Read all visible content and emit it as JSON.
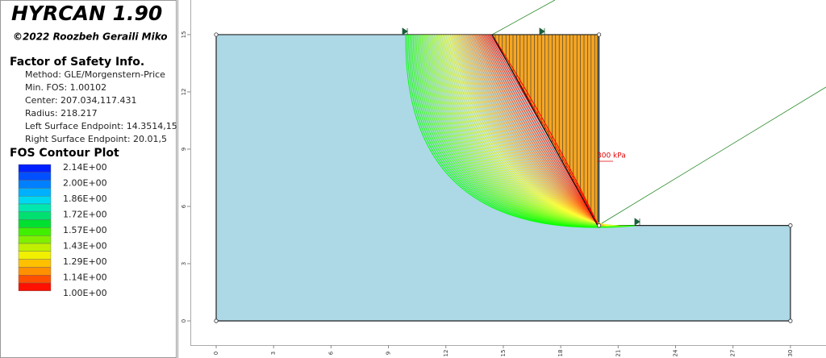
{
  "app": {
    "title": "HYRCAN 1.90",
    "copyright": "©2022 Roozbeh Geraili Miko"
  },
  "fos_info": {
    "heading": "Factor of Safety Info.",
    "lines": [
      "Method: GLE/Morgenstern-Price",
      "Min. FOS: 1.00102",
      "Center: 207.034,117.431",
      "Radius: 218.217",
      "Left Surface Endpoint: 14.3514,15",
      "Right Surface Endpoint: 20.01,5"
    ]
  },
  "contour": {
    "heading": "FOS Contour Plot",
    "labels": [
      "2.14E+00",
      "2.00E+00",
      "1.86E+00",
      "1.72E+00",
      "1.57E+00",
      "1.43E+00",
      "1.29E+00",
      "1.14E+00",
      "1.00E+00"
    ]
  },
  "axes": {
    "x_ticks": [
      0,
      3,
      6,
      9,
      12,
      15,
      18,
      21,
      24,
      27,
      30
    ],
    "y_ticks": [
      0,
      3,
      6,
      9,
      12,
      15
    ]
  },
  "load_label": "300 kPa"
}
